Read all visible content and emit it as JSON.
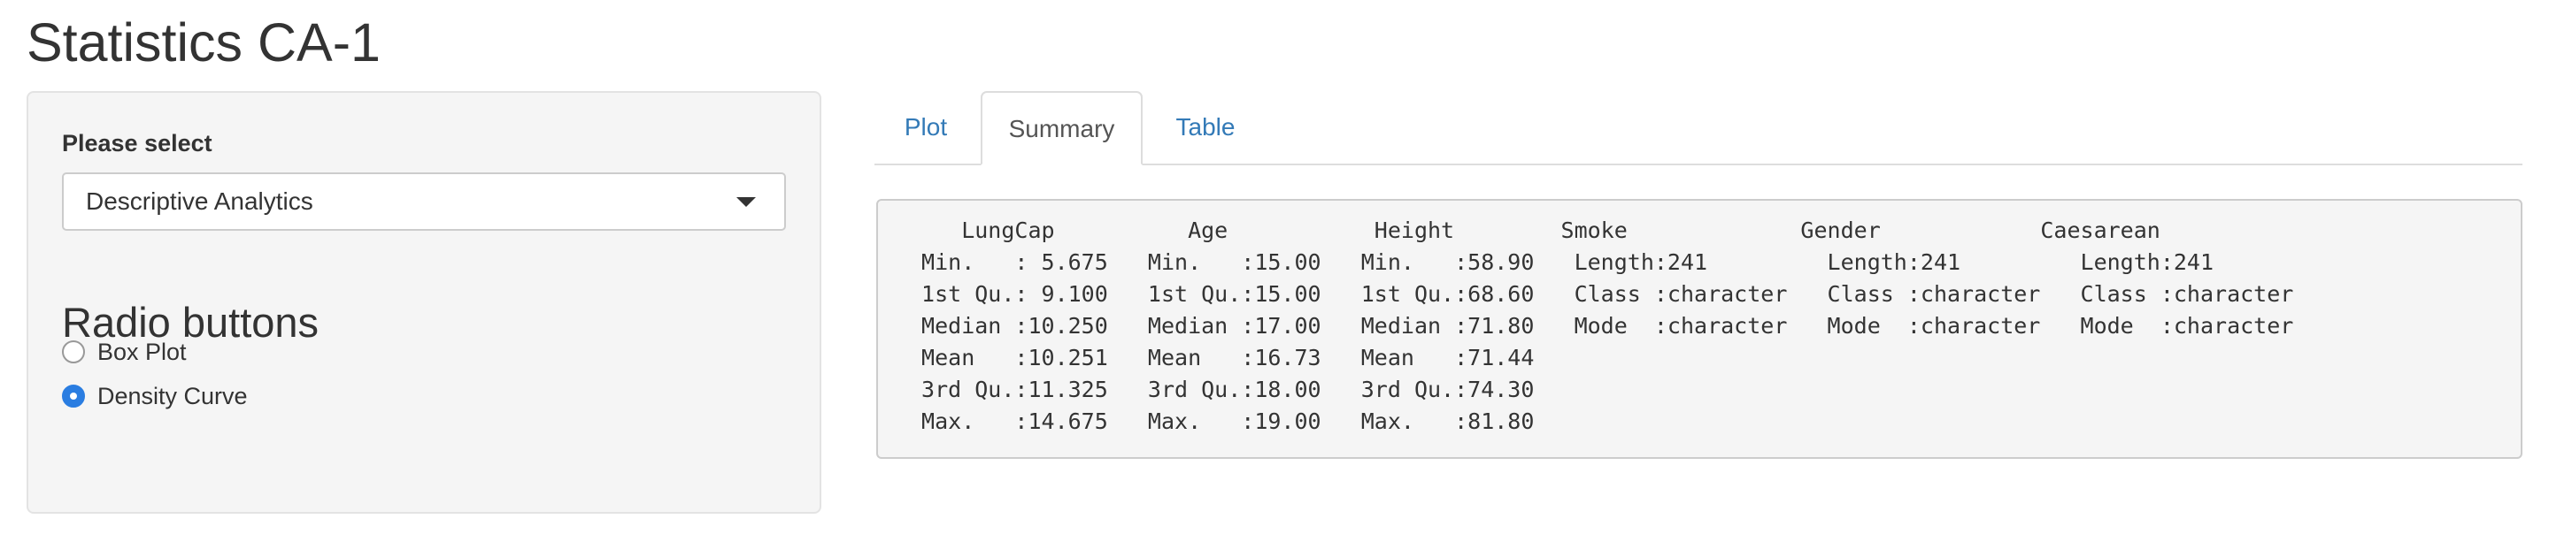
{
  "app": {
    "title": "Statistics CA-1"
  },
  "sidebar": {
    "select_label": "Please select",
    "select_value": "Descriptive Analytics",
    "radio_heading": "Radio buttons",
    "radio_options": [
      {
        "label": "Box Plot",
        "checked": false
      },
      {
        "label": "Density Curve",
        "checked": true
      }
    ]
  },
  "tabs": [
    {
      "label": "Plot",
      "active": false
    },
    {
      "label": "Summary",
      "active": true
    },
    {
      "label": "Table",
      "active": false
    }
  ],
  "summary_output": "    LungCap          Age           Height        Smoke             Gender            Caesarean        \n Min.   : 5.675   Min.   :15.00   Min.   :58.90   Length:241         Length:241         Length:241        \n 1st Qu.: 9.100   1st Qu.:15.00   1st Qu.:68.60   Class :character   Class :character   Class :character  \n Median :10.250   Median :17.00   Median :71.80   Mode  :character   Mode  :character   Mode  :character  \n Mean   :10.251   Mean   :16.73   Mean   :71.44                                                           \n 3rd Qu.:11.325   3rd Qu.:18.00   3rd Qu.:74.30                                                           \n Max.   :14.675   Max.   :19.00   Max.   :81.80                                                           ",
  "colors": {
    "link": "#337ab7",
    "radio_accent": "#2a7de1",
    "well_background": "#f5f5f5"
  }
}
